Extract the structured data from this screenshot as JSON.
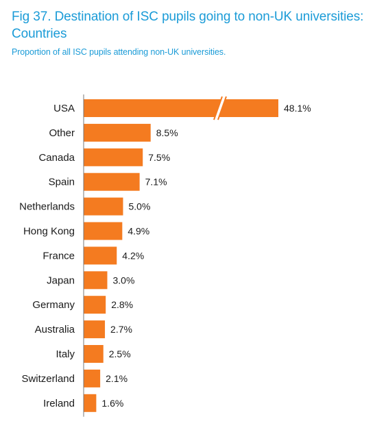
{
  "chart_data": {
    "type": "bar",
    "orientation": "horizontal",
    "title": "Fig 37. Destination of ISC pupils going to non-UK universities: Countries",
    "subtitle": "Proportion of all ISC pupils attending non-UK universities.",
    "categories": [
      "USA",
      "Other",
      "Canada",
      "Spain",
      "Netherlands",
      "Hong Kong",
      "France",
      "Japan",
      "Germany",
      "Australia",
      "Italy",
      "Switzerland",
      "Ireland"
    ],
    "values": [
      48.1,
      8.5,
      7.5,
      7.1,
      5.0,
      4.9,
      4.2,
      3.0,
      2.8,
      2.7,
      2.5,
      2.1,
      1.6
    ],
    "value_labels": [
      "48.1%",
      "8.5%",
      "7.5%",
      "7.1%",
      "5.0%",
      "4.9%",
      "4.2%",
      "3.0%",
      "2.8%",
      "2.7%",
      "2.5%",
      "2.1%",
      "1.6%"
    ],
    "axis_break_on": "USA",
    "xlabel": "",
    "ylabel": "",
    "grid": false,
    "legend": "none",
    "bar_color": "#f47b20"
  }
}
